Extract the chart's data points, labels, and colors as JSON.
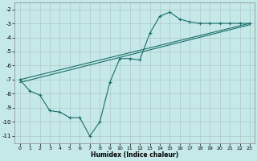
{
  "background_color": "#c5e8e8",
  "grid_color": "#b0c8c8",
  "line_color": "#1a6e6a",
  "xlim": [
    -0.5,
    23.5
  ],
  "ylim": [
    -11.5,
    -1.5
  ],
  "xlabel": "Humidex (Indice chaleur)",
  "yticks": [
    -11,
    -10,
    -9,
    -8,
    -7,
    -6,
    -5,
    -4,
    -3,
    -2
  ],
  "xticks": [
    0,
    1,
    2,
    3,
    4,
    5,
    6,
    7,
    8,
    9,
    10,
    11,
    12,
    13,
    14,
    15,
    16,
    17,
    18,
    19,
    20,
    21,
    22,
    23
  ],
  "series1_x": [
    0,
    1,
    2,
    3,
    4,
    5,
    6,
    7,
    8,
    9,
    10,
    11,
    12,
    13,
    14,
    15,
    16,
    17,
    18,
    19,
    20,
    21,
    22,
    23
  ],
  "series1_y": [
    -7.0,
    -7.8,
    -8.1,
    -9.2,
    -9.3,
    -9.7,
    -9.7,
    -11.0,
    -10.0,
    -7.2,
    -5.5,
    -5.5,
    -5.6,
    -3.7,
    -2.5,
    -2.2,
    -2.7,
    -2.9,
    -3.0,
    -3.0,
    -3.0,
    -3.0,
    -3.0,
    -3.0
  ],
  "series2_x": [
    0,
    23
  ],
  "series2_y": [
    -7.0,
    -3.0
  ],
  "series3_x": [
    0,
    23
  ],
  "series3_y": [
    -7.2,
    -3.1
  ]
}
